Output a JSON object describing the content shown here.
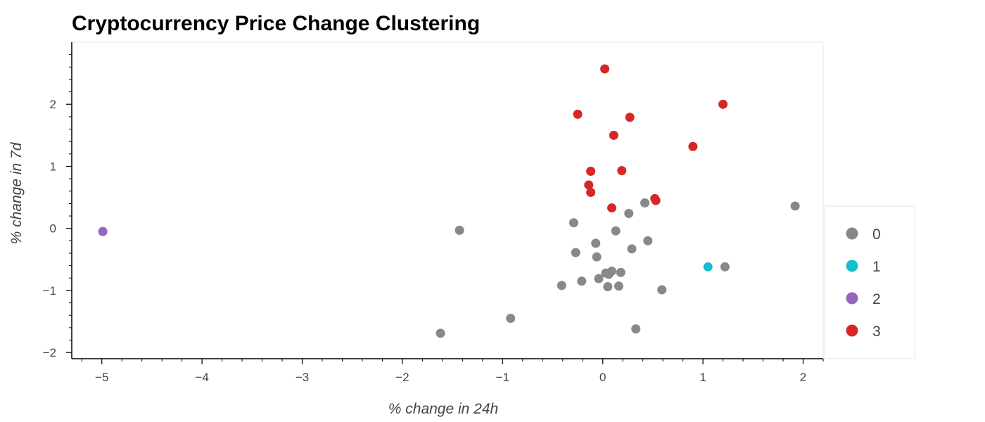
{
  "chart_data": {
    "type": "scatter",
    "title": "Cryptocurrency Price Change Clustering",
    "xlabel": "% change in 24h",
    "ylabel": "% change in 7d",
    "xlim": [
      -5.3,
      2.2
    ],
    "ylim": [
      -2.1,
      3.0
    ],
    "x_ticks": [
      -5,
      -4,
      -3,
      -2,
      -1,
      0,
      1,
      2
    ],
    "y_ticks": [
      -2,
      -1,
      0,
      1,
      2
    ],
    "grid": false,
    "legend_position": "right",
    "series": [
      {
        "name": "0",
        "color": "#888888",
        "points": [
          {
            "x": -1.43,
            "y": -0.03
          },
          {
            "x": -1.62,
            "y": -1.69
          },
          {
            "x": -0.92,
            "y": -1.45
          },
          {
            "x": -0.41,
            "y": -0.92
          },
          {
            "x": -0.21,
            "y": -0.85
          },
          {
            "x": -0.29,
            "y": 0.09
          },
          {
            "x": -0.27,
            "y": -0.39
          },
          {
            "x": -0.06,
            "y": -0.46
          },
          {
            "x": -0.07,
            "y": -0.24
          },
          {
            "x": -0.04,
            "y": -0.81
          },
          {
            "x": 0.03,
            "y": -0.72
          },
          {
            "x": 0.06,
            "y": -0.74
          },
          {
            "x": 0.09,
            "y": -0.69
          },
          {
            "x": 0.13,
            "y": -0.04
          },
          {
            "x": 0.05,
            "y": -0.94
          },
          {
            "x": 0.16,
            "y": -0.93
          },
          {
            "x": 0.18,
            "y": -0.71
          },
          {
            "x": 0.26,
            "y": 0.24
          },
          {
            "x": 0.29,
            "y": -0.33
          },
          {
            "x": 0.33,
            "y": -1.62
          },
          {
            "x": 0.42,
            "y": 0.41
          },
          {
            "x": 0.45,
            "y": -0.2
          },
          {
            "x": 0.59,
            "y": -0.99
          },
          {
            "x": 1.22,
            "y": -0.62
          },
          {
            "x": 1.92,
            "y": 0.36
          }
        ]
      },
      {
        "name": "1",
        "color": "#17becf",
        "points": [
          {
            "x": 1.05,
            "y": -0.62
          }
        ]
      },
      {
        "name": "2",
        "color": "#9467bd",
        "points": [
          {
            "x": -4.99,
            "y": -0.05
          }
        ]
      },
      {
        "name": "3",
        "color": "#d62728",
        "points": [
          {
            "x": 0.02,
            "y": 2.57
          },
          {
            "x": -0.25,
            "y": 1.84
          },
          {
            "x": 0.27,
            "y": 1.79
          },
          {
            "x": 1.2,
            "y": 2.0
          },
          {
            "x": 0.11,
            "y": 1.5
          },
          {
            "x": 0.9,
            "y": 1.32
          },
          {
            "x": -0.12,
            "y": 0.92
          },
          {
            "x": 0.19,
            "y": 0.93
          },
          {
            "x": -0.14,
            "y": 0.7
          },
          {
            "x": -0.12,
            "y": 0.58
          },
          {
            "x": 0.52,
            "y": 0.48
          },
          {
            "x": 0.53,
            "y": 0.45
          },
          {
            "x": 0.09,
            "y": 0.33
          }
        ]
      }
    ]
  }
}
